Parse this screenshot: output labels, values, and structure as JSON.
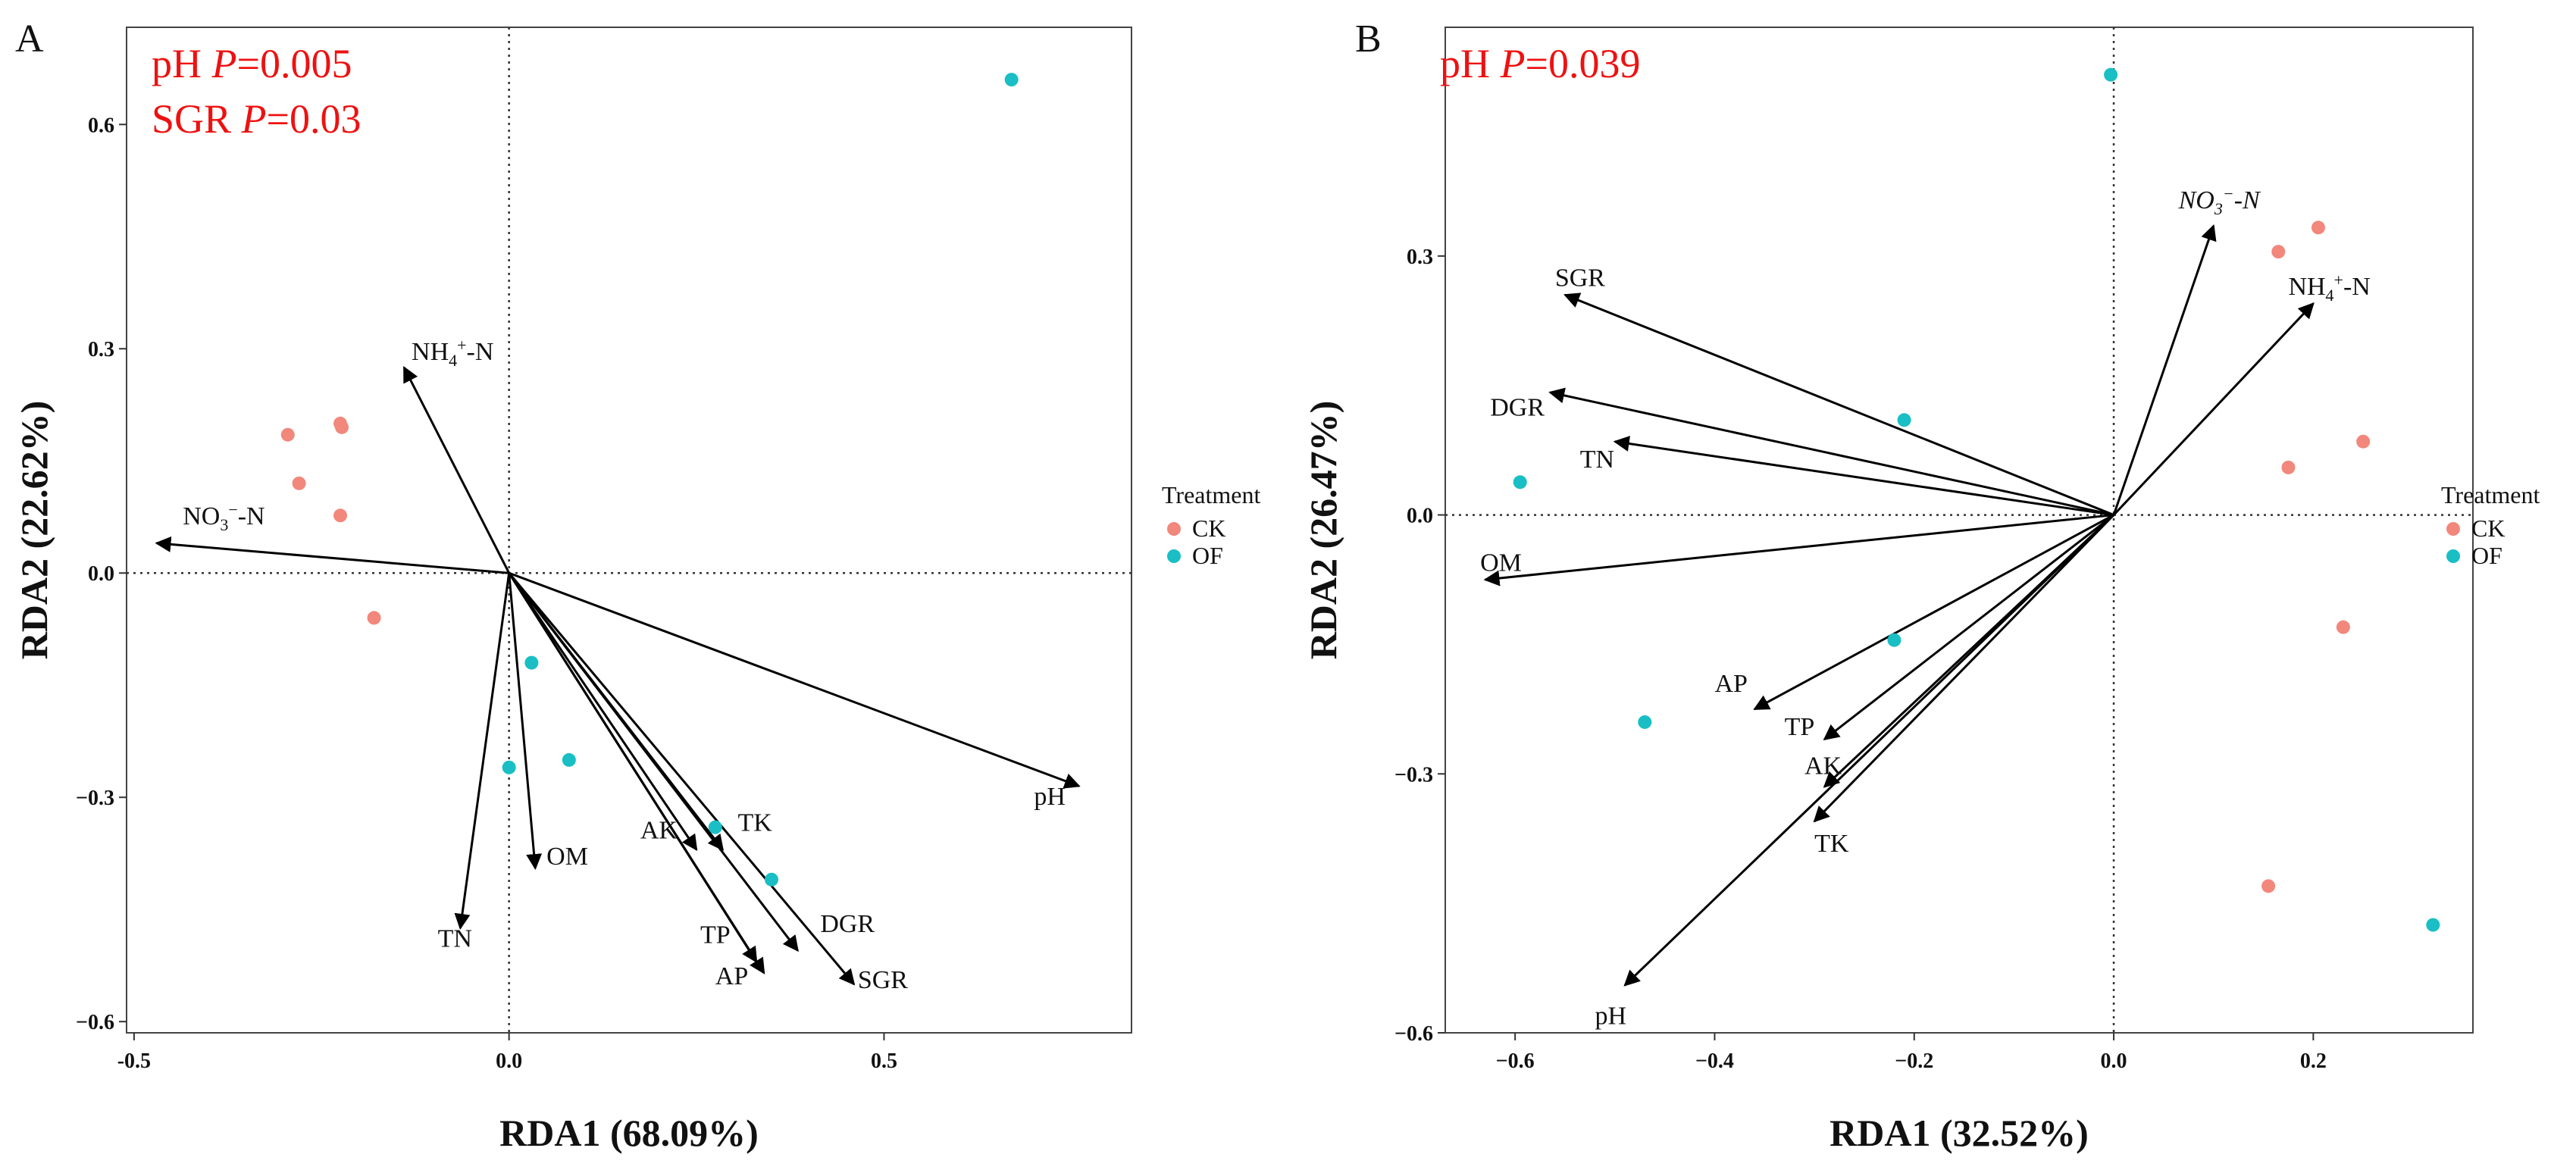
{
  "colors": {
    "CK": "#f2877c",
    "OF": "#19bfc4",
    "stat_text": "#ee1111"
  },
  "chart_data": [
    {
      "type": "scatter",
      "panel": "A",
      "xlabel": "RDA1 (68.09%)",
      "ylabel": "RDA2 (22.62%)",
      "xlim": [
        -0.51,
        0.83
      ],
      "ylim": [
        -0.615,
        0.73
      ],
      "xticks": [
        {
          "v": -0.5,
          "label": "-0.5"
        },
        {
          "v": 0,
          "label": "0.0"
        },
        {
          "v": 0.5,
          "label": "0.5"
        }
      ],
      "yticks": [
        {
          "v": -0.6,
          "label": "−0.6"
        },
        {
          "v": -0.3,
          "label": "−0.3"
        },
        {
          "v": 0,
          "label": "0.0"
        },
        {
          "v": 0.3,
          "label": "0.3"
        },
        {
          "v": 0.6,
          "label": "0.6"
        }
      ],
      "stats": [
        {
          "var": "pH",
          "p": "0.005"
        },
        {
          "var": "SGR",
          "p": "0.03"
        }
      ],
      "legend": {
        "title": "Treatment",
        "items": [
          "CK",
          "OF"
        ],
        "placement": "right"
      },
      "series": [
        {
          "name": "CK",
          "points": [
            {
              "x": -0.295,
              "y": 0.185
            },
            {
              "x": -0.225,
              "y": 0.2
            },
            {
              "x": -0.223,
              "y": 0.195
            },
            {
              "x": -0.28,
              "y": 0.12
            },
            {
              "x": -0.225,
              "y": 0.077
            },
            {
              "x": -0.18,
              "y": -0.06
            }
          ]
        },
        {
          "name": "OF",
          "points": [
            {
              "x": 0.67,
              "y": 0.66
            },
            {
              "x": 0.03,
              "y": -0.12
            },
            {
              "x": 0.08,
              "y": -0.25
            },
            {
              "x": 0.0,
              "y": -0.26
            },
            {
              "x": 0.275,
              "y": -0.34
            },
            {
              "x": 0.35,
              "y": -0.41
            }
          ]
        }
      ],
      "arrows": [
        {
          "name": "NH4+-N",
          "label": "NH",
          "sub": "4",
          "sup": "+",
          "tail": "-N",
          "x": -0.14,
          "y": 0.275,
          "lx": -0.13,
          "ly": 0.285
        },
        {
          "name": "NO3--N",
          "label": "NO",
          "sub": "3",
          "sup": "−",
          "tail": "-N",
          "x": -0.47,
          "y": 0.04,
          "lx": -0.435,
          "ly": 0.065
        },
        {
          "name": "pH",
          "label": "pH",
          "x": 0.76,
          "y": -0.285,
          "lx": 0.7,
          "ly": -0.31
        },
        {
          "name": "TN",
          "label": "TN",
          "x": -0.065,
          "y": -0.475,
          "lx": -0.095,
          "ly": -0.5
        },
        {
          "name": "OM",
          "label": "OM",
          "x": 0.035,
          "y": -0.395,
          "lx": 0.05,
          "ly": -0.39
        },
        {
          "name": "AK",
          "label": "AK",
          "x": 0.25,
          "y": -0.37,
          "lx": 0.175,
          "ly": -0.355
        },
        {
          "name": "TK",
          "label": "TK",
          "x": 0.285,
          "y": -0.37,
          "lx": 0.305,
          "ly": -0.345
        },
        {
          "name": "TP",
          "label": "TP",
          "x": 0.33,
          "y": -0.52,
          "lx": 0.255,
          "ly": -0.495
        },
        {
          "name": "AP",
          "label": "AP",
          "x": 0.34,
          "y": -0.535,
          "lx": 0.275,
          "ly": -0.55
        },
        {
          "name": "DGR",
          "label": "DGR",
          "x": 0.385,
          "y": -0.505,
          "lx": 0.415,
          "ly": -0.48
        },
        {
          "name": "SGR",
          "label": "SGR",
          "x": 0.46,
          "y": -0.55,
          "lx": 0.465,
          "ly": -0.555
        }
      ]
    },
    {
      "type": "scatter",
      "panel": "B",
      "xlabel": "RDA1 (32.52%)",
      "ylabel": "RDA2 (26.47%)",
      "xlim": [
        -0.67,
        0.36
      ],
      "ylim": [
        -0.6,
        0.565
      ],
      "xticks": [
        {
          "v": -0.6,
          "label": "−0.6"
        },
        {
          "v": -0.4,
          "label": "−0.4"
        },
        {
          "v": -0.2,
          "label": "−0.2"
        },
        {
          "v": 0,
          "label": "0.0"
        },
        {
          "v": 0.2,
          "label": "0.2"
        }
      ],
      "yticks": [
        {
          "v": -0.6,
          "label": "−0.6"
        },
        {
          "v": -0.3,
          "label": "−0.3"
        },
        {
          "v": 0,
          "label": "0.0"
        },
        {
          "v": 0.3,
          "label": "0.3"
        }
      ],
      "stats": [
        {
          "var": "pH",
          "p": "0.039"
        }
      ],
      "legend": {
        "title": "Treatment",
        "items": [
          "CK",
          "OF"
        ],
        "placement": "right"
      },
      "series": [
        {
          "name": "CK",
          "points": [
            {
              "x": 0.205,
              "y": 0.333
            },
            {
              "x": 0.165,
              "y": 0.305
            },
            {
              "x": 0.25,
              "y": 0.085
            },
            {
              "x": 0.175,
              "y": 0.055
            },
            {
              "x": 0.23,
              "y": -0.13
            },
            {
              "x": 0.155,
              "y": -0.43
            }
          ]
        },
        {
          "name": "OF",
          "points": [
            {
              "x": -0.003,
              "y": 0.51
            },
            {
              "x": -0.21,
              "y": 0.11
            },
            {
              "x": -0.595,
              "y": 0.038
            },
            {
              "x": -0.22,
              "y": -0.145
            },
            {
              "x": -0.47,
              "y": -0.24
            },
            {
              "x": 0.32,
              "y": -0.475
            }
          ]
        }
      ],
      "arrows": [
        {
          "name": "NO3--N",
          "label": "NO",
          "sub": "3",
          "sup": "−",
          "tail": "-N",
          "x": 0.1,
          "y": 0.335,
          "lx": 0.065,
          "ly": 0.355,
          "italic": true
        },
        {
          "name": "NH4+-N",
          "label": "NH",
          "sub": "4",
          "sup": "+",
          "tail": "-N",
          "x": 0.2,
          "y": 0.245,
          "lx": 0.175,
          "ly": 0.255
        },
        {
          "name": "SGR",
          "label": "SGR",
          "x": -0.55,
          "y": 0.255,
          "lx": -0.56,
          "ly": 0.265
        },
        {
          "name": "DGR",
          "label": "DGR",
          "x": -0.565,
          "y": 0.142,
          "lx": -0.625,
          "ly": 0.115
        },
        {
          "name": "TN",
          "label": "TN",
          "x": -0.5,
          "y": 0.085,
          "lx": -0.535,
          "ly": 0.055
        },
        {
          "name": "OM",
          "label": "OM",
          "x": -0.63,
          "y": -0.075,
          "lx": -0.635,
          "ly": -0.065
        },
        {
          "name": "AP",
          "label": "AP",
          "x": -0.36,
          "y": -0.225,
          "lx": -0.4,
          "ly": -0.205
        },
        {
          "name": "TP",
          "label": "TP",
          "x": -0.29,
          "y": -0.26,
          "lx": -0.33,
          "ly": -0.255
        },
        {
          "name": "AK",
          "label": "AK",
          "x": -0.29,
          "y": -0.315,
          "lx": -0.31,
          "ly": -0.3
        },
        {
          "name": "TK",
          "label": "TK",
          "x": -0.3,
          "y": -0.355,
          "lx": -0.3,
          "ly": -0.39
        },
        {
          "name": "pH",
          "label": "pH",
          "x": -0.49,
          "y": -0.545,
          "lx": -0.52,
          "ly": -0.59
        }
      ]
    }
  ]
}
